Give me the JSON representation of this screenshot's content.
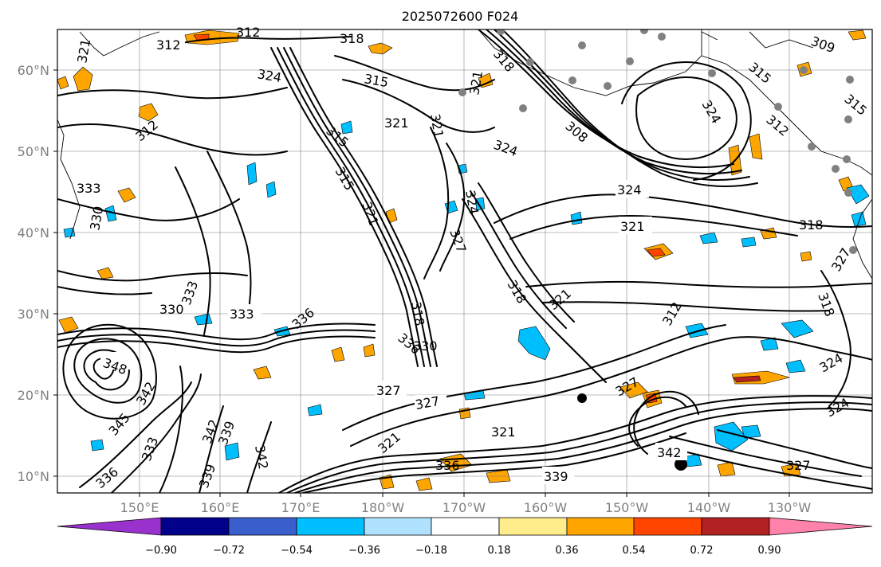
{
  "title": "2025072600 F024",
  "longitude_labels": [
    "150°E",
    "160°E",
    "170°E",
    "180°W",
    "170°W",
    "160°W",
    "150°W",
    "140°W",
    "130°W"
  ],
  "latitude_labels": [
    "60°N",
    "50°N",
    "40°N",
    "30°N",
    "20°N",
    "10°N"
  ],
  "colorbar": {
    "ticks": [
      "−0.90",
      "−0.72",
      "−0.54",
      "−0.36",
      "−0.18",
      "0.18",
      "0.36",
      "0.54",
      "0.72",
      "0.90"
    ],
    "colors": [
      "#9932cc",
      "#00008b",
      "#3a5fcd",
      "#00bfff",
      "#b0e2ff",
      "#ffffff",
      "#ffec8b",
      "#ffa500",
      "#ff4500",
      "#b22222",
      "#ff82ab"
    ]
  },
  "contour_labels": [
    "312",
    "312",
    "318",
    "309",
    "321",
    "324",
    "315",
    "321",
    "318",
    "315",
    "324",
    "308",
    "315",
    "312",
    "315",
    "312",
    "333",
    "330",
    "321",
    "324",
    "321",
    "324",
    "321",
    "318",
    "327",
    "321",
    "315",
    "324",
    "330",
    "333",
    "336",
    "333",
    "318",
    "336",
    "330",
    "318",
    "321",
    "312",
    "318",
    "348",
    "342",
    "345",
    "333",
    "336",
    "342",
    "339",
    "339",
    "342",
    "327",
    "327",
    "321",
    "321",
    "336",
    "339",
    "342",
    "324",
    "324",
    "327",
    "327",
    "327"
  ],
  "colors": {
    "frame": "#000000",
    "grid": "#7f7f7f",
    "stations": "#808080",
    "positive_fill": "#ffa500",
    "negative_fill": "#00bfff"
  }
}
